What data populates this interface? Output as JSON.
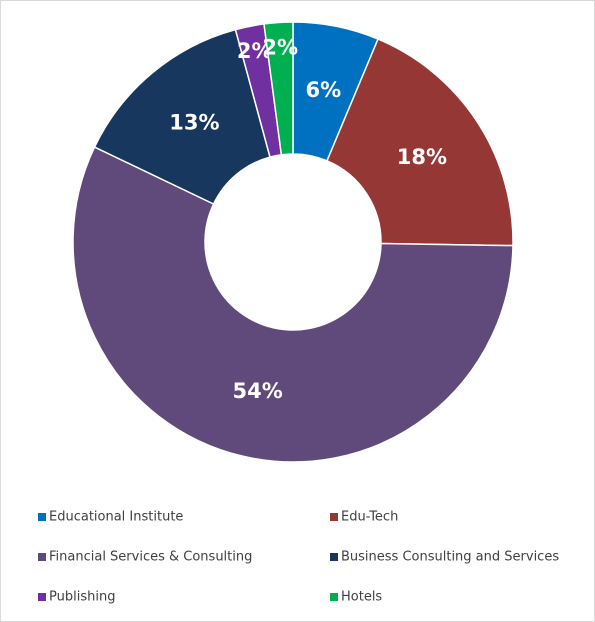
{
  "chart_data": {
    "type": "donut",
    "categories": [
      "Educational Institute",
      "Edu-Tech",
      "Financial Services & Consulting",
      "Business Consulting and Services",
      "Publishing",
      "Hotels"
    ],
    "values": [
      6,
      18,
      54,
      13,
      2,
      2
    ],
    "value_labels": [
      "6%",
      "18%",
      "54%",
      "13%",
      "2%",
      "2%"
    ],
    "colors": [
      "#0070c0",
      "#953735",
      "#604a7b",
      "#17375e",
      "#7030a0",
      "#00b050"
    ],
    "legend": "bottom"
  }
}
